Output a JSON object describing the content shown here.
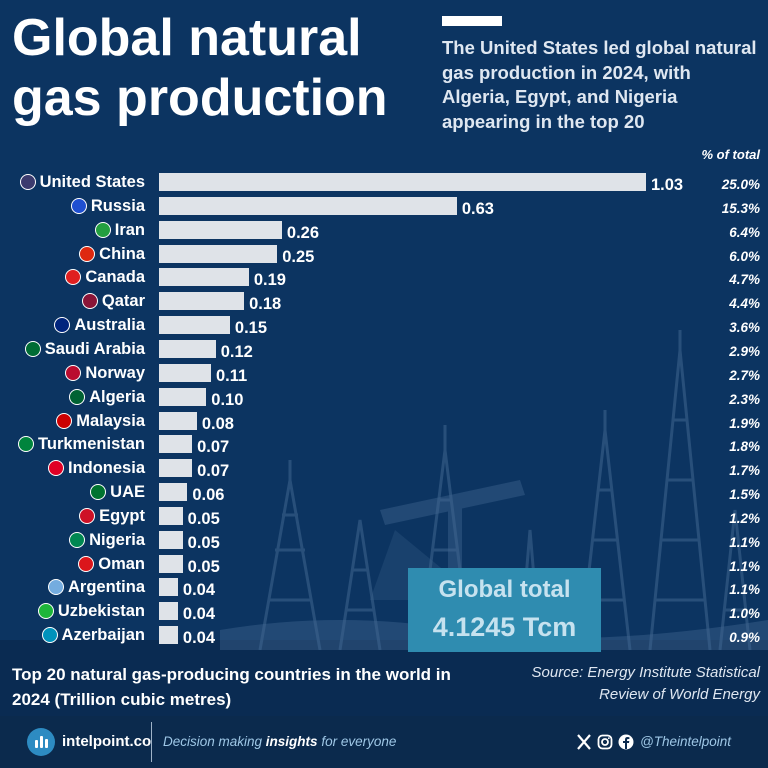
{
  "header": {
    "title": "Global natural gas production",
    "subtitle": "The United States led global natural gas production in 2024, with Algeria, Egypt, and Nigeria appearing in the top 20",
    "pct_header": "% of total"
  },
  "chart_data": {
    "type": "bar",
    "orientation": "horizontal",
    "categories": [
      "United States",
      "Russia",
      "Iran",
      "China",
      "Canada",
      "Qatar",
      "Australia",
      "Saudi Arabia",
      "Norway",
      "Algeria",
      "Malaysia",
      "Turkmenistan",
      "Indonesia",
      "UAE",
      "Egypt",
      "Nigeria",
      "Oman",
      "Argentina",
      "Uzbekistan",
      "Azerbaijan"
    ],
    "values": [
      1.03,
      0.63,
      0.26,
      0.25,
      0.19,
      0.18,
      0.15,
      0.12,
      0.11,
      0.1,
      0.08,
      0.07,
      0.07,
      0.06,
      0.05,
      0.05,
      0.05,
      0.04,
      0.04,
      0.04
    ],
    "value_labels": [
      "1.03",
      "0.63",
      "0.26",
      "0.25",
      "0.19",
      "0.18",
      "0.15",
      "0.12",
      "0.11",
      "0.10",
      "0.08",
      "0.07",
      "0.07",
      "0.06",
      "0.05",
      "0.05",
      "0.05",
      "0.04",
      "0.04",
      "0.04"
    ],
    "percent_of_total": [
      "25.0%",
      "15.3%",
      "6.4%",
      "6.0%",
      "4.7%",
      "4.4%",
      "3.6%",
      "2.9%",
      "2.7%",
      "2.3%",
      "1.9%",
      "1.8%",
      "1.7%",
      "1.5%",
      "1.2%",
      "1.1%",
      "1.1%",
      "1.1%",
      "1.0%",
      "0.9%"
    ],
    "flag_icons": [
      "flag-us-icon",
      "flag-ru-icon",
      "flag-ir-icon",
      "flag-cn-icon",
      "flag-ca-icon",
      "flag-qa-icon",
      "flag-au-icon",
      "flag-sa-icon",
      "flag-no-icon",
      "flag-dz-icon",
      "flag-my-icon",
      "flag-tm-icon",
      "flag-id-icon",
      "flag-ae-icon",
      "flag-eg-icon",
      "flag-ng-icon",
      "flag-om-icon",
      "flag-ar-icon",
      "flag-uz-icon",
      "flag-az-icon"
    ],
    "flag_colors": [
      "#3c3b6e",
      "#1f4fd1",
      "#239f40",
      "#de2910",
      "#e02020",
      "#8a1538",
      "#00247d",
      "#006c35",
      "#ba0c2f",
      "#006233",
      "#cc0001",
      "#00843d",
      "#e00025",
      "#00732f",
      "#ce1126",
      "#008751",
      "#db161b",
      "#74acdf",
      "#1eb53a",
      "#0092bc"
    ],
    "xlim": [
      0,
      1.03
    ],
    "grid": false,
    "bar_color": "#dfe3e8",
    "xlabel": "",
    "ylabel": ""
  },
  "total": {
    "label": "Global total",
    "value": "4.1245 Tcm"
  },
  "caption": "Top 20 natural gas-producing countries in the world in 2024 (Trillion cubic metres)",
  "source": "Source: Energy Institute Statistical Review of World Energy",
  "footer": {
    "brand": "intelpoint.co",
    "tagline_pre": "Decision making ",
    "tagline_bold": "insights",
    "tagline_post": " for everyone",
    "handle": "@Theintelpoint"
  },
  "colors": {
    "background": "#0c3461",
    "total_box": "#2f8cb0",
    "footer": "#0b2a4d"
  }
}
